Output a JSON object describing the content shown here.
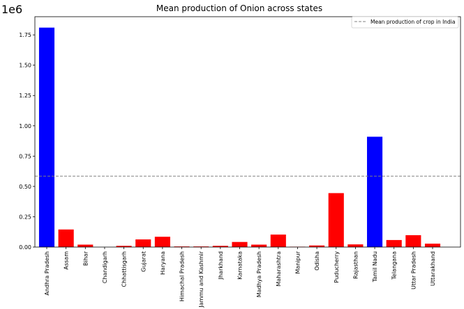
{
  "chart_data": {
    "type": "bar",
    "title": "Mean production of Onion across states",
    "offset_label": "1e6",
    "xlabel": "",
    "ylabel": "",
    "ylim": [
      0,
      1.9
    ],
    "yticks": [
      0.0,
      0.25,
      0.5,
      0.75,
      1.0,
      1.25,
      1.5,
      1.75
    ],
    "ytick_labels": [
      "0.00",
      "0.25",
      "0.50",
      "0.75",
      "1.00",
      "1.25",
      "1.50",
      "1.75"
    ],
    "y_unit_multiplier": 1000000,
    "categories": [
      "Andhra Pradesh",
      "Assam",
      "Bihar",
      "Chandigarh",
      "Chhattisgarh",
      "Gujarat",
      "Haryana",
      "Himachal Pradesh",
      "Jammu and Kashmir",
      "Jharkhand",
      "Karnataka",
      "Madhya Pradesh",
      "Maharashtra",
      "Manipur",
      "Odisha",
      "Puducherry",
      "Rajasthan",
      "Tamil Nadu",
      "Telangana",
      "Uttar Pradesh",
      "Uttarakhand"
    ],
    "values": [
      1.81,
      0.145,
      0.02,
      0.0,
      0.01,
      0.063,
      0.085,
      0.005,
      0.005,
      0.01,
      0.042,
      0.02,
      0.103,
      0.003,
      0.013,
      0.445,
      0.022,
      0.91,
      0.058,
      0.098,
      0.028
    ],
    "bar_colors": [
      "#0000ff",
      "#ff0000",
      "#ff0000",
      "#ff0000",
      "#ff0000",
      "#ff0000",
      "#ff0000",
      "#ff0000",
      "#ff0000",
      "#ff0000",
      "#ff0000",
      "#ff0000",
      "#ff0000",
      "#ff0000",
      "#ff0000",
      "#ff0000",
      "#ff0000",
      "#0000ff",
      "#ff0000",
      "#ff0000",
      "#ff0000"
    ],
    "reference_line": {
      "value": 0.585,
      "label": "Mean production of crop in India",
      "color": "#808080",
      "style": "dashed"
    },
    "legend": {
      "position": "top-right",
      "entries": [
        "Mean production of crop in India"
      ]
    },
    "grid": false
  }
}
